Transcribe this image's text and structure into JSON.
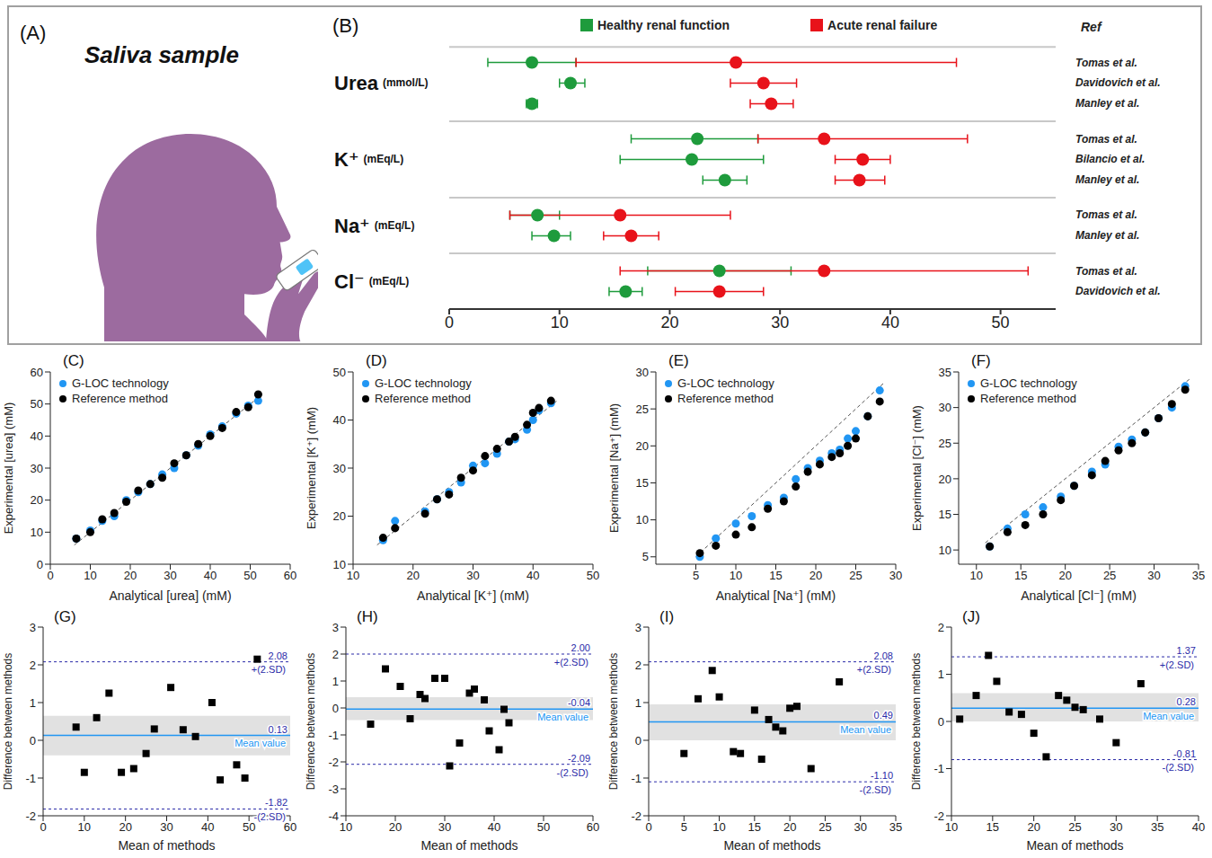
{
  "chart_data": [
    {
      "type": "illustration",
      "label": "(A)",
      "title": "Saliva sample"
    },
    {
      "type": "range",
      "label": "(B)",
      "legend": "top",
      "ref_header": "Ref",
      "xlim": [
        0,
        55
      ],
      "xticks": [
        0,
        10,
        20,
        30,
        40,
        50
      ],
      "groups": [
        {
          "label": "Urea",
          "unit": "(mmol/L)",
          "refs": [
            "Tomas et al.",
            "Davidovich et al.",
            "Manley et al."
          ]
        },
        {
          "label": "K⁺",
          "unit": "(mEq/L)",
          "refs": [
            "Tomas et al.",
            "Bilancio et al.",
            "Manley et al."
          ]
        },
        {
          "label": "Na⁺",
          "unit": "(mEq/L)",
          "refs": [
            "Tomas et al.",
            "Manley et al."
          ]
        },
        {
          "label": "Cl⁻",
          "unit": "(mEq/L)",
          "refs": [
            "Tomas et al.",
            "Davidovich et al."
          ]
        }
      ],
      "series": [
        {
          "name": "Healthy renal function",
          "color": "#1e9b3c",
          "values": [
            7.5,
            11,
            7.5,
            22.5,
            22,
            25,
            8,
            9.5,
            24.5,
            16
          ],
          "low": [
            3.5,
            10,
            7,
            16.5,
            15.5,
            23,
            5.5,
            7.5,
            18,
            14.5
          ],
          "high": [
            11.5,
            12.3,
            8,
            28,
            28.5,
            27,
            10,
            11,
            31,
            17.5
          ]
        },
        {
          "name": "Acute renal failure",
          "color": "#e8121a",
          "values": [
            26,
            28.5,
            29.2,
            34,
            37.5,
            37.2,
            15.5,
            16.5,
            34,
            24.5
          ],
          "low": [
            11.5,
            25.5,
            27.3,
            28,
            35,
            35,
            5.5,
            14,
            15.5,
            20.5
          ],
          "high": [
            46,
            31.5,
            31.2,
            47,
            40,
            39.5,
            25.5,
            19,
            52.5,
            28.5
          ]
        }
      ]
    },
    {
      "type": "scatter",
      "label": "(C)",
      "xlabel": "Analytical [urea] (mM)",
      "ylabel": "Experimental [urea] (mM)",
      "legend": "top-left",
      "xlim": [
        0,
        60
      ],
      "xticks": [
        0,
        10,
        20,
        30,
        40,
        50,
        60
      ],
      "ylim": [
        0,
        60
      ],
      "yticks": [
        0,
        10,
        20,
        30,
        40,
        50,
        60
      ],
      "x": [
        6.5,
        10,
        13,
        16,
        19,
        22,
        25,
        28,
        31,
        34,
        37,
        40,
        43,
        46.5,
        49.5,
        52
      ],
      "series": [
        {
          "name": "G-LOC technology",
          "color": "#2196f3",
          "values": [
            8,
            10.5,
            13.5,
            15,
            20,
            22.5,
            25,
            28,
            30,
            34,
            37,
            40.5,
            43,
            47,
            49.5,
            51
          ]
        },
        {
          "name": "Reference method",
          "color": "#000000",
          "values": [
            8,
            10,
            14,
            16,
            19.5,
            23,
            25,
            27,
            31.5,
            34,
            37.5,
            40,
            42.5,
            47.5,
            49,
            53
          ]
        }
      ],
      "fit": {
        "x": [
          6,
          53
        ],
        "y": [
          6,
          53
        ]
      }
    },
    {
      "type": "scatter",
      "label": "(D)",
      "xlabel": "Analytical [K⁺] (mM)",
      "ylabel": "Experimental [K⁺] (mM)",
      "legend": "top-left",
      "xlim": [
        10,
        50
      ],
      "xticks": [
        10,
        20,
        30,
        40,
        50
      ],
      "ylim": [
        10,
        50
      ],
      "yticks": [
        10,
        20,
        30,
        40,
        50
      ],
      "x": [
        15,
        17,
        22,
        24,
        26,
        28,
        30,
        32,
        34,
        36,
        37,
        39,
        40,
        41,
        43
      ],
      "series": [
        {
          "name": "G-LOC technology",
          "color": "#2196f3",
          "values": [
            15,
            19,
            21,
            23.5,
            25,
            27,
            30.5,
            31,
            33,
            35.5,
            36,
            38,
            40,
            42,
            43.5
          ]
        },
        {
          "name": "Reference method",
          "color": "#000000",
          "values": [
            15.5,
            17.5,
            20.5,
            23.5,
            24.5,
            28,
            29.5,
            32.5,
            34,
            35.5,
            36.5,
            39,
            41.5,
            42.5,
            44
          ]
        }
      ],
      "fit": {
        "x": [
          14,
          44
        ],
        "y": [
          14,
          44
        ]
      }
    },
    {
      "type": "scatter",
      "label": "(E)",
      "xlabel": "Analytical [Na⁺] (mM)",
      "ylabel": "Experimental [Na⁺] (mM)",
      "legend": "top-left",
      "xlim": [
        0,
        30
      ],
      "xticks": [
        5,
        10,
        15,
        20,
        25,
        30
      ],
      "ylim": [
        4,
        30
      ],
      "yticks": [
        5,
        10,
        15,
        20,
        25,
        30
      ],
      "x": [
        5.5,
        7.5,
        10,
        12,
        14,
        16,
        17.5,
        19,
        20.5,
        22,
        23,
        24,
        25,
        26.5,
        28
      ],
      "series": [
        {
          "name": "G-LOC technology",
          "color": "#2196f3",
          "values": [
            5,
            7.5,
            9.5,
            10.5,
            12,
            13,
            15.5,
            17,
            18,
            19,
            19.5,
            21,
            22,
            24,
            27.5
          ]
        },
        {
          "name": "Reference method",
          "color": "#000000",
          "values": [
            5.5,
            6.5,
            8,
            9,
            11.5,
            12.5,
            14.5,
            16.5,
            17.5,
            18.5,
            19,
            20,
            21,
            24,
            26
          ]
        }
      ],
      "fit": {
        "x": [
          5,
          28.5
        ],
        "y": [
          5,
          28.5
        ]
      }
    },
    {
      "type": "scatter",
      "label": "(F)",
      "xlabel": "Analytical [Cl⁻] (mM)",
      "ylabel": "Experimental [Cl⁻] (mM)",
      "legend": "top-left",
      "xlim": [
        8,
        35
      ],
      "xticks": [
        10,
        15,
        20,
        25,
        30,
        35
      ],
      "ylim": [
        8,
        35
      ],
      "yticks": [
        10,
        15,
        20,
        25,
        30,
        35
      ],
      "x": [
        11.5,
        13.5,
        15.5,
        17.5,
        19.5,
        21,
        23,
        24.5,
        26,
        27.5,
        29,
        30.5,
        32,
        33.5
      ],
      "series": [
        {
          "name": "G-LOC technology",
          "color": "#2196f3",
          "values": [
            10.5,
            13,
            15,
            16,
            17.5,
            19,
            21,
            22,
            24.5,
            25.5,
            26.5,
            28.5,
            30,
            33
          ]
        },
        {
          "name": "Reference method",
          "color": "#000000",
          "values": [
            10.5,
            12.5,
            13.5,
            15,
            17,
            19,
            20.5,
            22.5,
            24,
            25,
            26.5,
            28.5,
            30.5,
            32.5
          ]
        }
      ],
      "fit": {
        "x": [
          11,
          34
        ],
        "y": [
          11,
          34
        ]
      }
    },
    {
      "type": "bland-altman",
      "label": "(G)",
      "xlabel": "Mean of methods",
      "ylabel": "Difference between methods",
      "xlim": [
        0,
        60
      ],
      "xticks": [
        0,
        10,
        20,
        30,
        40,
        50,
        60
      ],
      "ylim": [
        -2,
        3
      ],
      "yticks": [
        -2,
        -1,
        0,
        1,
        2,
        3
      ],
      "x": [
        8,
        10,
        13,
        16,
        19,
        22,
        25,
        27,
        31,
        34,
        37,
        41,
        43,
        47,
        49,
        52
      ],
      "values": [
        0.35,
        -0.85,
        0.6,
        1.25,
        -0.85,
        -0.75,
        -0.35,
        0.3,
        1.4,
        0.28,
        0.1,
        1.0,
        -1.05,
        -0.65,
        -1.0,
        2.15
      ],
      "color": "#000000",
      "marker": "square",
      "band": [
        -0.4,
        0.65
      ],
      "mean": {
        "label": "Mean value",
        "value": 0.13
      },
      "upper": {
        "label": "+(2.SD)",
        "value": 2.08
      },
      "lower": {
        "label": "-(2.SD)",
        "value": -1.82
      }
    },
    {
      "type": "bland-altman",
      "label": "(H)",
      "xlabel": "Mean of methods",
      "ylabel": "Difference between methods",
      "xlim": [
        10,
        60
      ],
      "xticks": [
        10,
        20,
        30,
        40,
        50,
        60
      ],
      "ylim": [
        -4,
        3
      ],
      "yticks": [
        -4,
        -3,
        -2,
        -1,
        0,
        1,
        2,
        3
      ],
      "x": [
        15,
        18,
        21,
        23,
        25,
        26,
        28,
        30,
        31,
        33,
        35,
        36,
        38,
        39,
        41,
        42,
        43
      ],
      "values": [
        -0.6,
        1.45,
        0.8,
        -0.4,
        0.5,
        0.35,
        1.1,
        1.1,
        -2.15,
        -1.3,
        0.55,
        0.7,
        0.3,
        -0.85,
        -1.55,
        -0.05,
        -0.55
      ],
      "color": "#000000",
      "marker": "square",
      "band": [
        -0.45,
        0.4
      ],
      "mean": {
        "label": "Mean value",
        "value": -0.04
      },
      "upper": {
        "label": "+(2.SD)",
        "value": 2,
        "value_label": "2.00"
      },
      "lower": {
        "label": "-(2.SD)",
        "value": -2.09
      }
    },
    {
      "type": "bland-altman",
      "label": "(I)",
      "xlabel": "Mean of methods",
      "ylabel": "Difference between methods",
      "xlim": [
        0,
        35
      ],
      "xticks": [
        0,
        5,
        10,
        15,
        20,
        25,
        30,
        35
      ],
      "ylim": [
        -2,
        3
      ],
      "yticks": [
        -2,
        -1,
        0,
        1,
        2,
        3
      ],
      "x": [
        5,
        7,
        9,
        10,
        12,
        13,
        15,
        16,
        17,
        18,
        19,
        20,
        21,
        23,
        27
      ],
      "values": [
        -0.35,
        1.1,
        1.85,
        1.15,
        -0.3,
        -0.35,
        0.8,
        -0.5,
        0.55,
        0.35,
        0.25,
        0.85,
        0.9,
        -0.75,
        1.55
      ],
      "color": "#000000",
      "marker": "square",
      "band": [
        0,
        0.95
      ],
      "mean": {
        "label": "Mean value",
        "value": 0.49
      },
      "upper": {
        "label": "+(2.SD)",
        "value": 2.08
      },
      "lower": {
        "label": "-(2.SD)",
        "value": -1.1,
        "value_label": "-1.10"
      }
    },
    {
      "type": "bland-altman",
      "label": "(J)",
      "xlabel": "Mean of methods",
      "ylabel": "Difference between methods",
      "xlim": [
        10,
        40
      ],
      "xticks": [
        10,
        15,
        20,
        25,
        30,
        35,
        40
      ],
      "ylim": [
        -2,
        2
      ],
      "yticks": [
        -2,
        -1,
        0,
        1,
        2
      ],
      "x": [
        11,
        13,
        14.5,
        15.5,
        17,
        18.5,
        20,
        21.5,
        23,
        24,
        25,
        26,
        28,
        30,
        33
      ],
      "values": [
        0.05,
        0.55,
        1.4,
        0.85,
        0.2,
        0.15,
        -0.25,
        -0.75,
        0.55,
        0.45,
        0.3,
        0.25,
        0.05,
        -0.45,
        0.8
      ],
      "color": "#000000",
      "marker": "square",
      "band": [
        0,
        0.6
      ],
      "mean": {
        "label": "Mean value",
        "value": 0.28
      },
      "upper": {
        "label": "+(2.SD)",
        "value": 1.37
      },
      "lower": {
        "label": "-(2.SD)",
        "value": -0.81
      }
    }
  ]
}
